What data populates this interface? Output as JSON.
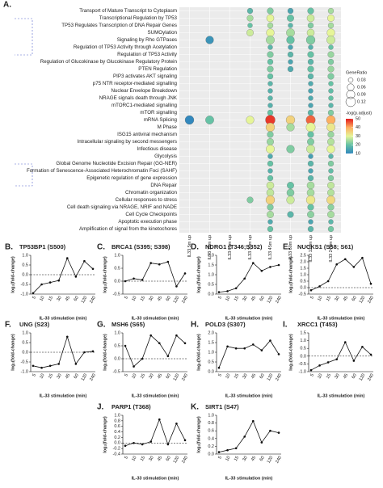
{
  "chart_data": [
    {
      "type": "dotplot",
      "panel_label": "A.",
      "rows": [
        "Transport of Mature Transcript to Cytoplasm",
        "Transcriptional Regulation by TP53",
        "TP53 Regulates Transcription of DNA Repair Genes",
        "SUMOylation",
        "Signaling by Rho GTPases",
        "Regulation of TP53 Activity through Acetylation",
        "Regulation of TP53 Activity",
        "Regulation of Glucokinase by Glucokinase Regulatory Protein",
        "PTEN Regulation",
        "PIP3 activates AKT signaling",
        "p75 NTR receptor-mediated signalling",
        "Nuclear Envelope Breakdown",
        "NRAGE signals death through JNK",
        "mTORC1-mediated signalling",
        "mTOR signalling",
        "mRNA Splicing",
        "M Phase",
        "ISG15 antiviral mechanism",
        "Intracellular signaling by second messengers",
        "Infectious disease",
        "Glycolysis",
        "Global Genome Nucleotide Excision Repair (GG-NER)",
        "Formation of Senescence-Associated Heterochromatin Foci (SAHF)",
        "Epigenetic regulation of gene expression",
        "DNA Repair",
        "Chromatin organization",
        "Cellular responses to stress",
        "Cell death signaling via NRAGE, NRIF and NADE",
        "Cell Cycle Checkpoints",
        "Apoptotic execution phase",
        "Amplification of signal from the kinetochores"
      ],
      "columns": [
        "IL33 5m up",
        "IL33 10m up",
        "IL33 15m up",
        "IL33 30m up",
        "IL33 45m up",
        "IL33 60m up",
        "IL33 120m up",
        "IL33 240m up"
      ],
      "gene_ratio": [
        [
          null,
          null,
          null,
          0.04,
          0.05,
          0.04,
          0.05,
          0.04
        ],
        [
          null,
          null,
          null,
          0.05,
          0.07,
          0.06,
          0.07,
          0.06
        ],
        [
          null,
          null,
          null,
          0.03,
          0.04,
          0.03,
          0.04,
          0.04
        ],
        [
          null,
          null,
          null,
          0.06,
          0.08,
          0.09,
          0.07,
          0.08
        ],
        [
          null,
          0.08,
          null,
          null,
          0.09,
          0.08,
          0.1,
          0.09
        ],
        [
          null,
          null,
          null,
          null,
          0.03,
          0.03,
          0.03,
          0.03
        ],
        [
          null,
          null,
          null,
          null,
          0.05,
          0.04,
          0.05,
          0.05
        ],
        [
          null,
          null,
          null,
          null,
          0.04,
          0.03,
          0.04,
          0.04
        ],
        [
          null,
          null,
          null,
          null,
          0.05,
          0.04,
          0.05,
          0.05
        ],
        [
          null,
          null,
          null,
          null,
          0.04,
          null,
          0.04,
          0.05
        ],
        [
          null,
          null,
          null,
          null,
          0.03,
          null,
          0.03,
          0.03
        ],
        [
          null,
          null,
          null,
          null,
          0.03,
          null,
          0.03,
          0.03
        ],
        [
          null,
          null,
          null,
          null,
          0.03,
          null,
          0.03,
          0.03
        ],
        [
          null,
          null,
          null,
          null,
          0.03,
          null,
          0.03,
          0.03
        ],
        [
          null,
          null,
          null,
          null,
          0.04,
          null,
          0.04,
          0.04
        ],
        [
          0.1,
          0.09,
          null,
          0.08,
          0.12,
          0.1,
          0.11,
          0.1
        ],
        [
          null,
          null,
          null,
          null,
          0.1,
          0.08,
          0.11,
          0.09
        ],
        [
          null,
          null,
          null,
          null,
          0.05,
          null,
          0.05,
          0.05
        ],
        [
          null,
          null,
          null,
          null,
          0.06,
          null,
          0.06,
          0.06
        ],
        [
          null,
          null,
          null,
          null,
          0.09,
          0.08,
          0.09,
          0.08
        ],
        [
          null,
          null,
          null,
          null,
          0.03,
          null,
          0.03,
          0.03
        ],
        [
          null,
          null,
          null,
          null,
          0.04,
          null,
          0.04,
          0.04
        ],
        [
          null,
          null,
          null,
          null,
          0.03,
          null,
          0.03,
          0.03
        ],
        [
          null,
          null,
          null,
          null,
          0.04,
          null,
          0.04,
          0.04
        ],
        [
          null,
          null,
          null,
          null,
          0.07,
          0.06,
          0.07,
          0.06
        ],
        [
          null,
          null,
          null,
          null,
          0.07,
          0.07,
          0.07,
          0.06
        ],
        [
          null,
          null,
          null,
          0.05,
          0.1,
          0.08,
          0.1,
          0.09
        ],
        [
          null,
          null,
          null,
          null,
          0.05,
          null,
          0.05,
          0.05
        ],
        [
          null,
          null,
          null,
          null,
          0.06,
          0.05,
          0.06,
          0.06
        ],
        [
          null,
          null,
          null,
          null,
          0.03,
          null,
          0.03,
          0.03
        ],
        [
          null,
          null,
          null,
          null,
          0.04,
          null,
          0.04,
          0.04
        ]
      ],
      "neg_log_padj": [
        [
          null,
          null,
          null,
          18,
          22,
          15,
          20,
          25
        ],
        [
          null,
          null,
          null,
          25,
          30,
          20,
          28,
          30
        ],
        [
          null,
          null,
          null,
          20,
          25,
          18,
          22,
          25
        ],
        [
          null,
          null,
          null,
          28,
          30,
          25,
          28,
          30
        ],
        [
          null,
          12,
          null,
          null,
          25,
          20,
          22,
          28
        ],
        [
          null,
          null,
          null,
          null,
          18,
          15,
          17,
          20
        ],
        [
          null,
          null,
          null,
          null,
          22,
          18,
          20,
          24
        ],
        [
          null,
          null,
          null,
          null,
          20,
          15,
          18,
          22
        ],
        [
          null,
          null,
          null,
          null,
          22,
          16,
          20,
          24
        ],
        [
          null,
          null,
          null,
          null,
          20,
          null,
          18,
          22
        ],
        [
          null,
          null,
          null,
          null,
          18,
          null,
          16,
          20
        ],
        [
          null,
          null,
          null,
          null,
          17,
          null,
          15,
          19
        ],
        [
          null,
          null,
          null,
          null,
          18,
          null,
          16,
          20
        ],
        [
          null,
          null,
          null,
          null,
          17,
          null,
          15,
          18
        ],
        [
          null,
          null,
          null,
          null,
          20,
          null,
          18,
          22
        ],
        [
          10,
          20,
          null,
          30,
          48,
          35,
          45,
          40
        ],
        [
          null,
          null,
          null,
          null,
          35,
          25,
          30,
          32
        ],
        [
          null,
          null,
          null,
          null,
          22,
          null,
          20,
          24
        ],
        [
          null,
          null,
          null,
          null,
          24,
          null,
          22,
          26
        ],
        [
          null,
          null,
          null,
          null,
          30,
          22,
          28,
          30
        ],
        [
          null,
          null,
          null,
          null,
          16,
          null,
          14,
          18
        ],
        [
          null,
          null,
          null,
          null,
          20,
          null,
          18,
          22
        ],
        [
          null,
          null,
          null,
          null,
          17,
          null,
          15,
          19
        ],
        [
          null,
          null,
          null,
          null,
          20,
          null,
          18,
          22
        ],
        [
          null,
          null,
          null,
          null,
          28,
          20,
          25,
          27
        ],
        [
          null,
          null,
          null,
          null,
          27,
          22,
          25,
          26
        ],
        [
          null,
          null,
          null,
          22,
          35,
          28,
          32,
          34
        ],
        [
          null,
          null,
          null,
          null,
          22,
          null,
          20,
          23
        ],
        [
          null,
          null,
          null,
          null,
          25,
          18,
          23,
          25
        ],
        [
          null,
          null,
          null,
          null,
          16,
          null,
          15,
          18
        ],
        [
          null,
          null,
          null,
          null,
          20,
          null,
          18,
          21
        ]
      ],
      "size_legend": {
        "title": "GeneRatio",
        "ticks": [
          0.03,
          0.06,
          0.09,
          0.12
        ]
      },
      "color_legend": {
        "title": "-log(p.adjust)",
        "ticks": [
          50,
          40,
          30,
          20,
          10
        ],
        "colors": [
          "#e31a1c",
          "#fdae61",
          "#e6f598",
          "#66c2a5",
          "#3288bd"
        ]
      }
    },
    {
      "type": "line",
      "panel_label": "B.",
      "title": "TP53BP1 (S500)",
      "ylabel": "log₂(fold-change)",
      "xlabel": "IL-33 stimulation (min)",
      "categories": [
        "5",
        "10",
        "15",
        "30",
        "45",
        "60",
        "120",
        "240"
      ],
      "values": [
        -0.95,
        -0.5,
        -0.4,
        -0.3,
        0.85,
        -0.1,
        0.7,
        0.3
      ],
      "ylim": [
        -1,
        1
      ],
      "yticks": [
        {
          "value": -1,
          "label": "-1.0"
        },
        -0.5,
        {
          "value": 0,
          "label": "0.0"
        },
        0.5,
        {
          "value": 1,
          "label": "1.0"
        }
      ],
      "color": "#111111",
      "zero_line": true
    },
    {
      "type": "line",
      "panel_label": "C.",
      "title": "BRCA1 (S395; S398)",
      "ylabel": "log₂(fold-change)",
      "xlabel": "IL-33 stimulation (min)",
      "categories": [
        "5",
        "10",
        "15",
        "30",
        "45",
        "60",
        "120",
        "240"
      ],
      "values": [
        0.0,
        0.1,
        0.05,
        0.7,
        0.65,
        0.75,
        -0.2,
        0.3
      ],
      "ylim": [
        -0.5,
        1
      ],
      "yticks": [
        -0.5,
        {
          "value": 0,
          "label": "0.0"
        },
        0.5,
        {
          "value": 1,
          "label": "1.0"
        }
      ],
      "color": "#111111",
      "zero_line": true
    },
    {
      "type": "line",
      "panel_label": "D.",
      "title": "NDRG1 (T346;S352)",
      "ylabel": "log₂(fold-change)",
      "xlabel": "IL-33 stimulation (min)",
      "categories": [
        "5",
        "10",
        "15",
        "30",
        "45",
        "60",
        "120",
        "240"
      ],
      "values": [
        0.1,
        0.15,
        0.3,
        0.8,
        1.6,
        1.2,
        1.4,
        1.5
      ],
      "ylim": [
        0,
        2
      ],
      "yticks": [
        {
          "value": 0,
          "label": "0.0"
        },
        0.5,
        {
          "value": 1,
          "label": "1.0"
        },
        1.5,
        {
          "value": 2,
          "label": "2.0"
        }
      ],
      "color": "#111111",
      "zero_line": false
    },
    {
      "type": "line",
      "panel_label": "E.",
      "title": "NUCKS1 (S58; S61)",
      "ylabel": "log₂(fold-change)",
      "xlabel": "IL-33 stimulation (min)",
      "categories": [
        "5",
        "10",
        "15",
        "30",
        "45",
        "60",
        "120",
        "240"
      ],
      "values": [
        -0.2,
        0.1,
        0.5,
        1.8,
        2.2,
        1.6,
        2.3,
        0.3
      ],
      "ylim": [
        -0.5,
        2.5
      ],
      "yticks": [
        -0.5,
        {
          "value": 0,
          "label": "0.0"
        },
        0.5,
        {
          "value": 1,
          "label": "1.0"
        },
        1.5,
        {
          "value": 2,
          "label": "2.0"
        },
        2.5
      ],
      "color": "#111111",
      "zero_line": true
    },
    {
      "type": "line",
      "panel_label": "F.",
      "title": "UNG (S23)",
      "ylabel": "log₂(fold-change)",
      "xlabel": "IL-33 stimulation (min)",
      "categories": [
        "5",
        "10",
        "15",
        "30",
        "45",
        "60",
        "120",
        "240"
      ],
      "values": [
        -0.7,
        -0.8,
        -0.7,
        -0.6,
        0.8,
        -0.6,
        0.0,
        0.05
      ],
      "ylim": [
        -1,
        1
      ],
      "yticks": [
        {
          "value": -1,
          "label": "-1.0"
        },
        -0.5,
        {
          "value": 0,
          "label": "0.0"
        },
        0.5,
        {
          "value": 1,
          "label": "1.0"
        }
      ],
      "color": "#111111",
      "zero_line": true
    },
    {
      "type": "line",
      "panel_label": "G.",
      "title": "MSH6 (S65)",
      "ylabel": "log₂(fold-change)",
      "xlabel": "IL-33 stimulation (min)",
      "categories": [
        "5",
        "10",
        "15",
        "30",
        "45",
        "60",
        "120",
        "240"
      ],
      "values": [
        0.5,
        -0.3,
        0.0,
        0.9,
        0.6,
        0.1,
        0.9,
        0.6
      ],
      "ylim": [
        -0.5,
        1
      ],
      "yticks": [
        -0.5,
        {
          "value": 0,
          "label": "0.0"
        },
        0.5,
        {
          "value": 1,
          "label": "1.0"
        }
      ],
      "color": "#111111",
      "zero_line": true
    },
    {
      "type": "line",
      "panel_label": "H.",
      "title": "POLD3 (S307)",
      "ylabel": "log₂(fold-change)",
      "xlabel": "IL-33 stimulation (min)",
      "categories": [
        "5",
        "10",
        "15",
        "30",
        "45",
        "60",
        "120",
        "240"
      ],
      "values": [
        0.2,
        1.3,
        1.2,
        1.2,
        1.4,
        1.1,
        1.6,
        0.9
      ],
      "ylim": [
        0,
        2
      ],
      "yticks": [
        {
          "value": 0,
          "label": "0.0"
        },
        0.5,
        {
          "value": 1,
          "label": "1.0"
        },
        1.5,
        {
          "value": 2,
          "label": "2.0"
        }
      ],
      "color": "#111111",
      "zero_line": false
    },
    {
      "type": "line",
      "panel_label": "I.",
      "title": "XRCC1 (T453)",
      "ylabel": "log₂(fold-change)",
      "xlabel": "IL-33 stimulation (min)",
      "categories": [
        "5",
        "10",
        "15",
        "30",
        "45",
        "60",
        "120",
        "240"
      ],
      "values": [
        -0.9,
        -0.6,
        -0.4,
        -0.2,
        0.9,
        -0.3,
        0.6,
        0.1
      ],
      "ylim": [
        -1,
        1.5
      ],
      "yticks": [
        {
          "value": -1,
          "label": "-1.0"
        },
        -0.5,
        {
          "value": 0,
          "label": "0.0"
        },
        0.5,
        {
          "value": 1,
          "label": "1.0"
        },
        1.5
      ],
      "color": "#111111",
      "zero_line": true
    },
    {
      "type": "line",
      "panel_label": "J.",
      "title": "PARP1 (T368)",
      "ylabel": "log₂(fold-change)",
      "xlabel": "IL-33 stimulation (min)",
      "categories": [
        "5",
        "10",
        "15",
        "30",
        "45",
        "60",
        "120",
        "240"
      ],
      "values": [
        -0.1,
        0.0,
        -0.05,
        0.05,
        0.85,
        -0.05,
        0.7,
        0.1
      ],
      "ylim": [
        -0.4,
        1
      ],
      "yticks": [
        -0.4,
        -0.2,
        {
          "value": 0,
          "label": "0.0"
        },
        0.2,
        0.4,
        0.6,
        0.8,
        {
          "value": 1,
          "label": "1.0"
        }
      ],
      "color": "#111111",
      "zero_line": true
    },
    {
      "type": "line",
      "panel_label": "K.",
      "title": "SIRT1 (S47)",
      "ylabel": "log₂(fold-change)",
      "xlabel": "IL-33 stimulation (min)",
      "categories": [
        "5",
        "10",
        "15",
        "30",
        "45",
        "60",
        "120",
        "240"
      ],
      "values": [
        0.05,
        0.1,
        0.15,
        0.45,
        0.85,
        0.3,
        0.6,
        0.55
      ],
      "ylim": [
        0,
        1
      ],
      "yticks": [
        {
          "value": 0,
          "label": "0.0"
        },
        0.2,
        0.4,
        0.6,
        0.8,
        {
          "value": 1,
          "label": "1.0"
        }
      ],
      "color": "#111111",
      "zero_line": false
    }
  ]
}
